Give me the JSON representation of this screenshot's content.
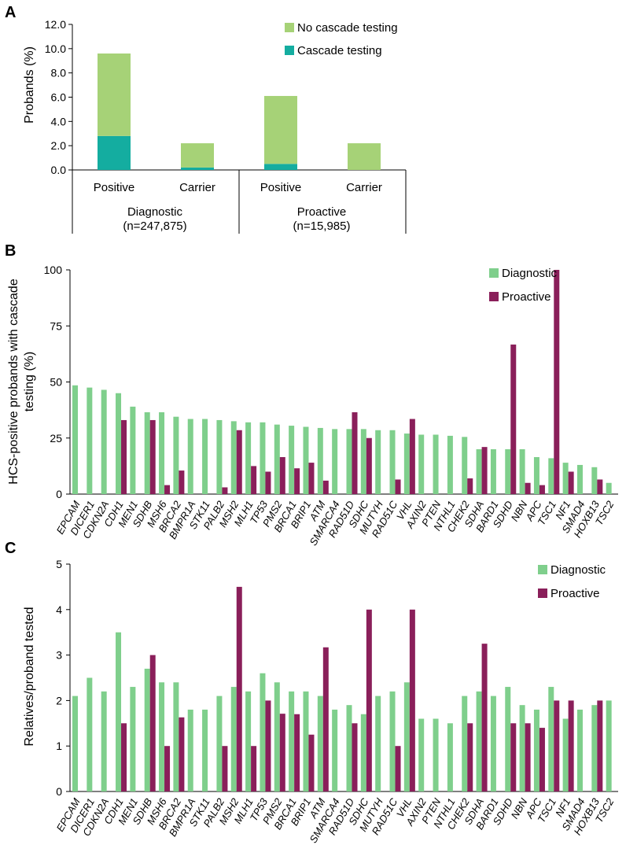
{
  "colors": {
    "diagnostic": "#7fcf8c",
    "proactive": "#8a1f5a",
    "no_cascade": "#a6d277",
    "cascade": "#14ada0",
    "axis": "#000000"
  },
  "chart_data": [
    {
      "panel": "A",
      "type": "bar",
      "stacked": true,
      "ylabel": "Probands (%)",
      "ylim": [
        0,
        12
      ],
      "yticks": [
        "0.0",
        "2.0",
        "4.0",
        "6.0",
        "8.0",
        "10.0",
        "12.0"
      ],
      "categories": [
        "Positive",
        "Carrier",
        "Positive",
        "Carrier"
      ],
      "groups": [
        {
          "label": "Diagnostic",
          "sublabel": "(n=247,875)"
        },
        {
          "label": "Proactive",
          "sublabel": "(n=15,985)"
        }
      ],
      "series": [
        {
          "name": "Cascade testing",
          "values": [
            2.8,
            0.2,
            0.5,
            0.0
          ]
        },
        {
          "name": "No cascade testing",
          "values": [
            6.8,
            2.0,
            5.6,
            2.2
          ]
        }
      ],
      "legend": [
        "No cascade testing",
        "Cascade testing"
      ]
    },
    {
      "panel": "B",
      "type": "bar",
      "ylabel": [
        "HCS-positive probands with cascade",
        "testing (%)"
      ],
      "ylim": [
        0,
        100
      ],
      "yticks": [
        "0",
        "25",
        "50",
        "75",
        "100"
      ],
      "categories": [
        "EPCAM",
        "DICER1",
        "CDKN2A",
        "CDH1",
        "MEN1",
        "SDHB",
        "MSH6",
        "BRCA2",
        "BMPR1A",
        "STK11",
        "PALB2",
        "MSH2",
        "MLH1",
        "TP53",
        "PMS2",
        "BRCA1",
        "BRIP1",
        "ATM",
        "SMARCA4",
        "RAD51D",
        "SDHC",
        "MUTYH",
        "RAD51C",
        "VHL",
        "AXIN2",
        "PTEN",
        "NTHL1",
        "CHEK2",
        "SDHA",
        "BARD1",
        "SDHD",
        "NBN",
        "APC",
        "TSC1",
        "NF1",
        "SMAD4",
        "HOXB13",
        "TSC2"
      ],
      "series": [
        {
          "name": "Diagnostic",
          "values": [
            48.5,
            47.5,
            46.5,
            45,
            39,
            36.5,
            36.5,
            34.5,
            33.5,
            33.5,
            33,
            32.5,
            32,
            32,
            31,
            30.5,
            30,
            29.5,
            29,
            29,
            29,
            28.5,
            28.5,
            27,
            26.5,
            26.5,
            26,
            25.5,
            20,
            20,
            20,
            20,
            16.5,
            16,
            14,
            13,
            12,
            5
          ]
        },
        {
          "name": "Proactive",
          "values": [
            null,
            null,
            null,
            33,
            null,
            33,
            4,
            10.5,
            null,
            null,
            3,
            28.5,
            12.5,
            10,
            16.5,
            11.5,
            14,
            6,
            null,
            36.5,
            25,
            null,
            6.5,
            33.5,
            null,
            null,
            null,
            7,
            21,
            null,
            66.7,
            5,
            4,
            100,
            10,
            null,
            6.5,
            null
          ]
        }
      ],
      "legend": [
        "Diagnostic",
        "Proactive"
      ]
    },
    {
      "panel": "C",
      "type": "bar",
      "ylabel": "Relatives/proband tested",
      "ylim": [
        0,
        5
      ],
      "yticks": [
        "0",
        "1",
        "2",
        "3",
        "4",
        "5"
      ],
      "categories": [
        "EPCAM",
        "DICER1",
        "CDKN2A",
        "CDH1",
        "MEN1",
        "SDHB",
        "MSH6",
        "BRCA2",
        "BMPR1A",
        "STK11",
        "PALB2",
        "MSH2",
        "MLH1",
        "TP53",
        "PMS2",
        "BRCA1",
        "BRIP1",
        "ATM",
        "SMARCA4",
        "RAD51D",
        "SDHC",
        "MUTYH",
        "RAD51C",
        "VHL",
        "AXIN2",
        "PTEN",
        "NTHL1",
        "CHEK2",
        "SDHA",
        "BARD1",
        "SDHD",
        "NBN",
        "APC",
        "TSC1",
        "NF1",
        "SMAD4",
        "HOXB13",
        "TSC2"
      ],
      "series": [
        {
          "name": "Diagnostic",
          "values": [
            2.1,
            2.5,
            2.2,
            3.5,
            2.3,
            2.7,
            2.4,
            2.4,
            1.8,
            1.8,
            2.1,
            2.3,
            2.2,
            2.6,
            2.4,
            2.2,
            2.2,
            2.1,
            1.8,
            1.9,
            1.7,
            2.1,
            2.2,
            2.4,
            1.6,
            1.6,
            1.5,
            2.1,
            2.2,
            2.1,
            2.3,
            1.9,
            1.8,
            2.3,
            1.6,
            1.8,
            1.9,
            2.0
          ]
        },
        {
          "name": "Proactive",
          "values": [
            null,
            null,
            null,
            1.5,
            null,
            3.0,
            1.0,
            1.63,
            null,
            null,
            1.0,
            4.5,
            1.0,
            2.0,
            1.71,
            1.7,
            1.25,
            3.17,
            null,
            1.5,
            4.0,
            null,
            1.0,
            4.0,
            null,
            null,
            null,
            1.5,
            3.25,
            null,
            1.5,
            1.5,
            1.4,
            2.0,
            2.0,
            null,
            2.0,
            null
          ]
        }
      ],
      "legend": [
        "Diagnostic",
        "Proactive"
      ]
    }
  ]
}
